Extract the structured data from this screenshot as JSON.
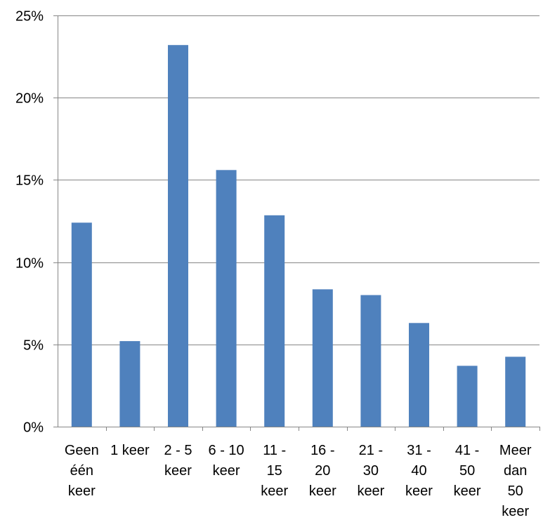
{
  "chart_data": {
    "type": "bar",
    "categories": [
      "Geen één keer",
      "1 keer",
      "2 - 5 keer",
      "6 - 10 keer",
      "11 - 15 keer",
      "16 - 20 keer",
      "21 - 30 keer",
      "31 - 40 keer",
      "41 - 50 keer",
      "Meer dan 50 keer"
    ],
    "category_label_lines": [
      [
        "Geen",
        "één",
        "keer"
      ],
      [
        "1 keer"
      ],
      [
        "2 - 5",
        "keer"
      ],
      [
        "6 - 10",
        "keer"
      ],
      [
        "11 -",
        "15",
        "keer"
      ],
      [
        "16 -",
        "20",
        "keer"
      ],
      [
        "21 -",
        "30",
        "keer"
      ],
      [
        "31 -",
        "40",
        "keer"
      ],
      [
        "41 -",
        "50",
        "keer"
      ],
      [
        "Meer",
        "dan",
        "50",
        "keer"
      ]
    ],
    "values": [
      12.4,
      5.2,
      23.2,
      15.6,
      12.85,
      8.35,
      8.0,
      6.3,
      3.7,
      4.25
    ],
    "unit": "%",
    "ylim": [
      0,
      25
    ],
    "yticks": [
      0,
      5,
      10,
      15,
      20,
      25
    ],
    "ytick_labels": [
      "0%",
      "5%",
      "10%",
      "15%",
      "20%",
      "25%"
    ],
    "grid": true,
    "legend": "none",
    "title": "",
    "xlabel": "",
    "ylabel": "",
    "colors": {
      "bar": "#4F81BD",
      "grid": "#868686"
    }
  }
}
